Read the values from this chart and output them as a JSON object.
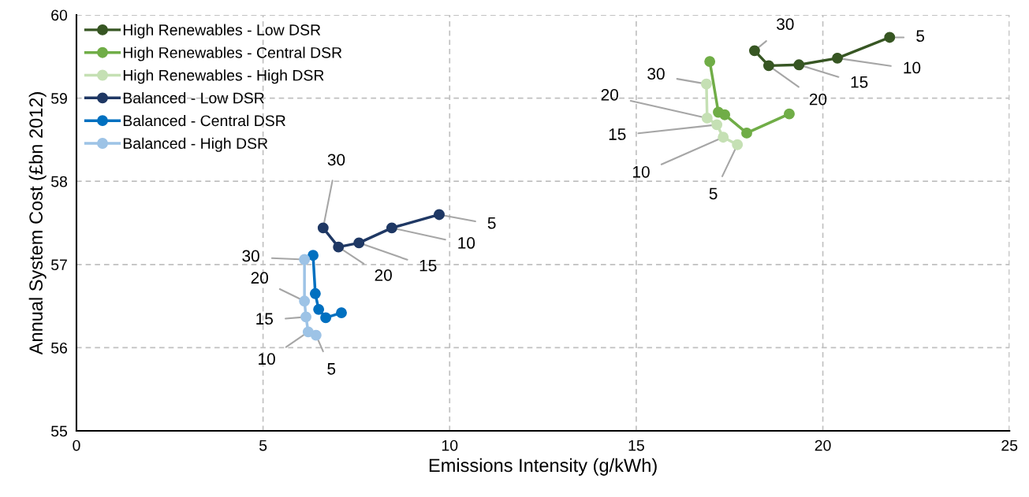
{
  "chart_data": {
    "type": "line",
    "xlabel": "Emissions Intensity (g/kWh)",
    "ylabel": "Annual System Cost (£bn 2012)",
    "xlim": [
      0,
      25
    ],
    "xticks": [
      0,
      5,
      10,
      15,
      20,
      25
    ],
    "ylim": [
      55,
      60
    ],
    "yticks": [
      55,
      56,
      57,
      58,
      59,
      60
    ],
    "grid": true,
    "legend": "top left",
    "marker": "circle",
    "line_style": "solid",
    "series": [
      {
        "name": "High Renewables - Low DSR",
        "color": "#375623",
        "x": [
          21.79,
          20.39,
          19.36,
          18.55,
          18.17
        ],
        "values": [
          59.73,
          59.48,
          59.4,
          59.39,
          59.57
        ]
      },
      {
        "name": "High Renewables - Central DSR",
        "color": "#70ad47",
        "x": [
          19.1,
          17.96,
          17.37,
          17.2,
          16.97
        ],
        "values": [
          58.81,
          58.58,
          58.8,
          58.83,
          59.44
        ]
      },
      {
        "name": "High Renewables - High DSR",
        "color": "#c5e0b4",
        "x": [
          17.71,
          17.33,
          17.16,
          16.9,
          16.88
        ],
        "values": [
          58.44,
          58.53,
          58.68,
          58.76,
          59.17
        ]
      },
      {
        "name": "Balanced - Low DSR",
        "color": "#1f3864",
        "x": [
          9.72,
          8.45,
          7.57,
          7.02,
          6.61
        ],
        "values": [
          57.6,
          57.44,
          57.26,
          57.21,
          57.44
        ]
      },
      {
        "name": "Balanced - Central DSR",
        "color": "#0070c0",
        "x": [
          7.1,
          6.68,
          6.49,
          6.4,
          6.34
        ],
        "values": [
          56.42,
          56.36,
          56.46,
          56.65,
          57.11
        ]
      },
      {
        "name": "Balanced - High DSR",
        "color": "#9dc3e6",
        "x": [
          6.42,
          6.21,
          6.15,
          6.11,
          6.11
        ],
        "values": [
          56.15,
          56.19,
          56.37,
          56.56,
          57.06
        ]
      }
    ],
    "annotations": [
      {
        "text": "5",
        "x": 21.79,
        "y": 59.73
      },
      {
        "text": "10",
        "x": 20.39,
        "y": 59.48
      },
      {
        "text": "15",
        "x": 19.36,
        "y": 59.4
      },
      {
        "text": "20",
        "x": 18.55,
        "y": 59.39
      },
      {
        "text": "30",
        "x": 18.17,
        "y": 59.57
      },
      {
        "text": "5",
        "x": 17.71,
        "y": 58.44
      },
      {
        "text": "10",
        "x": 17.33,
        "y": 58.53
      },
      {
        "text": "15",
        "x": 17.16,
        "y": 58.68
      },
      {
        "text": "20",
        "x": 16.9,
        "y": 58.76
      },
      {
        "text": "30",
        "x": 16.88,
        "y": 59.17
      },
      {
        "text": "5",
        "x": 9.72,
        "y": 57.6
      },
      {
        "text": "10",
        "x": 8.45,
        "y": 57.44
      },
      {
        "text": "15",
        "x": 7.57,
        "y": 57.26
      },
      {
        "text": "20",
        "x": 7.02,
        "y": 57.21
      },
      {
        "text": "30",
        "x": 6.61,
        "y": 57.44
      },
      {
        "text": "5",
        "x": 6.42,
        "y": 56.15
      },
      {
        "text": "10",
        "x": 6.21,
        "y": 56.19
      },
      {
        "text": "15",
        "x": 6.15,
        "y": 56.37
      },
      {
        "text": "20",
        "x": 6.11,
        "y": 56.56
      },
      {
        "text": "30",
        "x": 6.11,
        "y": 57.06
      }
    ]
  }
}
